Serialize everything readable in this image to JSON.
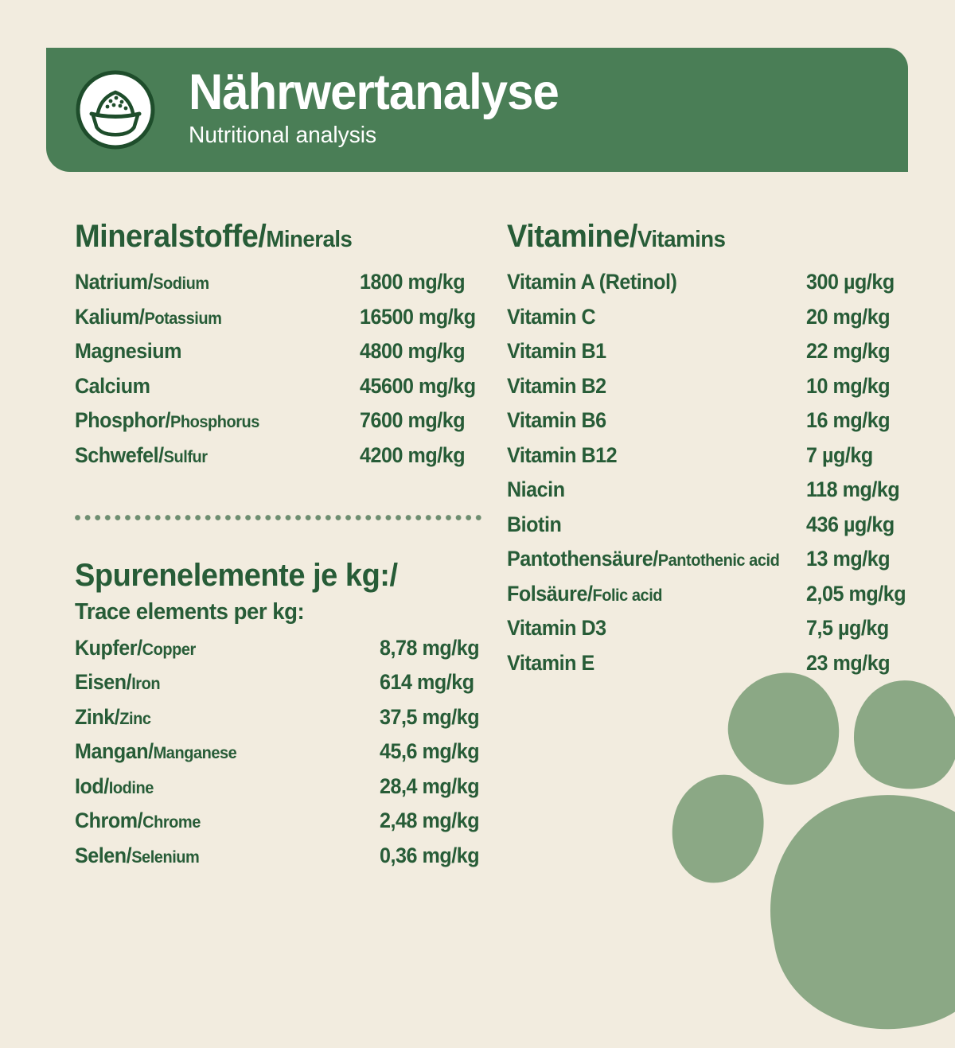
{
  "header": {
    "title": "Nährwertanalyse",
    "subtitle": "Nutritional analysis",
    "icon": "food-bowl-icon"
  },
  "colors": {
    "background": "#f2ecdf",
    "banner_green": "#4a7e56",
    "text_green": "#275c37",
    "icon_dark_green": "#1e4d2b",
    "divider_dot_green": "#6f8e71",
    "paw_green": "#8ba885",
    "header_text": "#ffffff"
  },
  "sections": {
    "minerals": {
      "title_de": "Mineralstoffe/",
      "title_en": "Minerals",
      "rows": [
        {
          "label_de": "Natrium/",
          "label_en": "Sodium",
          "value": "1800 mg/kg"
        },
        {
          "label_de": "Kalium/",
          "label_en": "Potassium",
          "value": "16500 mg/kg"
        },
        {
          "label_de": "Magnesium",
          "label_en": "",
          "value": "4800 mg/kg"
        },
        {
          "label_de": "Calcium",
          "label_en": "",
          "value": "45600 mg/kg"
        },
        {
          "label_de": "Phosphor/",
          "label_en": "Phosphorus",
          "value": "7600 mg/kg"
        },
        {
          "label_de": "Schwefel/",
          "label_en": "Sulfur",
          "value": "4200 mg/kg"
        }
      ]
    },
    "trace_elements": {
      "title_de": "Spurenelemente je kg:/",
      "title_en": "Trace elements per kg:",
      "rows": [
        {
          "label_de": "Kupfer/",
          "label_en": "Copper",
          "value": "8,78 mg/kg"
        },
        {
          "label_de": "Eisen/",
          "label_en": "Iron",
          "value": "614 mg/kg"
        },
        {
          "label_de": "Zink/",
          "label_en": "Zinc",
          "value": "37,5 mg/kg"
        },
        {
          "label_de": "Mangan/",
          "label_en": "Manganese",
          "value": "45,6 mg/kg"
        },
        {
          "label_de": "Iod/",
          "label_en": "Iodine",
          "value": "28,4 mg/kg"
        },
        {
          "label_de": "Chrom/",
          "label_en": "Chrome",
          "value": "2,48 mg/kg"
        },
        {
          "label_de": "Selen/",
          "label_en": "Selenium",
          "value": "0,36 mg/kg"
        }
      ]
    },
    "vitamins": {
      "title_de": "Vitamine/",
      "title_en": "Vitamins",
      "rows": [
        {
          "label_de": "Vitamin A (Retinol)",
          "label_en": "",
          "value": "300 µg/kg"
        },
        {
          "label_de": "Vitamin C",
          "label_en": "",
          "value": "20 mg/kg"
        },
        {
          "label_de": "Vitamin B1",
          "label_en": "",
          "value": "22 mg/kg"
        },
        {
          "label_de": "Vitamin B2",
          "label_en": "",
          "value": "10 mg/kg"
        },
        {
          "label_de": "Vitamin B6",
          "label_en": "",
          "value": "16 mg/kg"
        },
        {
          "label_de": "Vitamin B12",
          "label_en": "",
          "value": "7 µg/kg"
        },
        {
          "label_de": "Niacin",
          "label_en": "",
          "value": "118 mg/kg"
        },
        {
          "label_de": "Biotin",
          "label_en": "",
          "value": "436 µg/kg"
        },
        {
          "label_de": "Pantothensäure/",
          "label_en": "Pantothenic acid",
          "value": "13 mg/kg"
        },
        {
          "label_de": "Folsäure/",
          "label_en": "Folic acid",
          "value": "2,05 mg/kg"
        },
        {
          "label_de": "Vitamin D3",
          "label_en": "",
          "value": "7,5 µg/kg"
        },
        {
          "label_de": "Vitamin E",
          "label_en": "",
          "value": "23 mg/kg"
        }
      ]
    }
  },
  "decor": {
    "divider_style": "dotted-line",
    "paw_print": "paw-print-bottom-right"
  }
}
